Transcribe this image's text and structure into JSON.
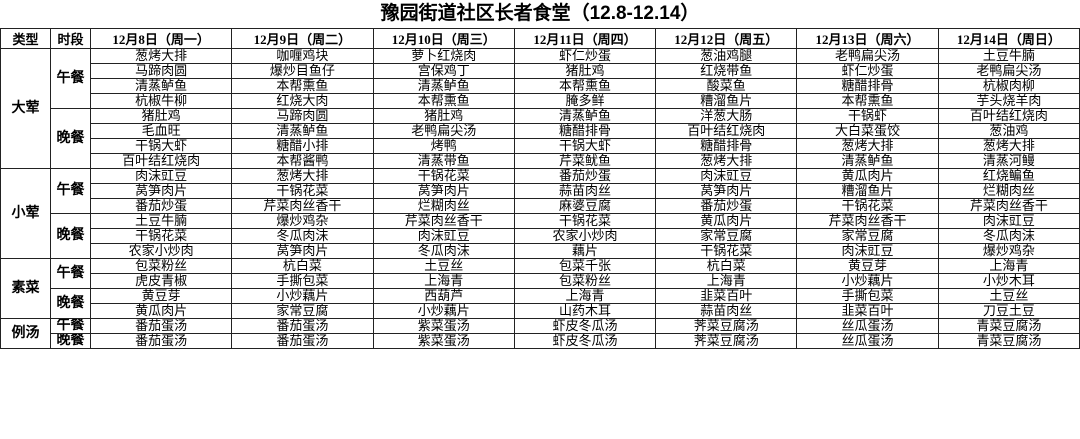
{
  "header": {
    "title": "豫园街道社区长者食堂（12.8-12.14）",
    "columns": [
      "类型",
      "时段",
      "12月8日（周一）",
      "12月9日（周二）",
      "12月10日（周三）",
      "12月11日（周四）",
      "12月12日（周五）",
      "12月13日（周六）",
      "12月14日（周日）"
    ]
  },
  "groups": [
    {
      "type": "大荤",
      "periods": [
        {
          "period": "午餐",
          "rows": [
            [
              "葱烤大排",
              "咖喱鸡块",
              "萝卜红烧肉",
              "虾仁炒蛋",
              "葱油鸡腿",
              "老鸭扁尖汤",
              "土豆牛腩"
            ],
            [
              "马蹄肉圆",
              "爆炒目鱼仔",
              "宫保鸡丁",
              "猪肚鸡",
              "红烧带鱼",
              "虾仁炒蛋",
              "老鸭扁尖汤"
            ],
            [
              "清蒸鲈鱼",
              "本帮熏鱼",
              "清蒸鲈鱼",
              "本帮熏鱼",
              "酸菜鱼",
              "糖醋排骨",
              "杭椒肉柳"
            ],
            [
              "杭椒牛柳",
              "红烧大肉",
              "本帮熏鱼",
              "腌多鲜",
              "糟溜鱼片",
              "本帮熏鱼",
              "芋头烧羊肉"
            ]
          ]
        },
        {
          "period": "晚餐",
          "rows": [
            [
              "猪肚鸡",
              "马蹄肉圆",
              "猪肚鸡",
              "清蒸鲈鱼",
              "洋葱大肠",
              "干锅虾",
              "百叶结红烧肉"
            ],
            [
              "毛血旺",
              "清蒸鲈鱼",
              "老鸭扁尖汤",
              "糖醋排骨",
              "百叶结红烧肉",
              "大白菜蛋饺",
              "葱油鸡"
            ],
            [
              "干锅大虾",
              "糖醋小排",
              "烤鸭",
              "干锅大虾",
              "糖醋排骨",
              "葱烤大排",
              "葱烤大排"
            ],
            [
              "百叶结红烧肉",
              "本帮酱鸭",
              "清蒸带鱼",
              "芹菜鱿鱼",
              "葱烤大排",
              "清蒸鲈鱼",
              "清蒸河鳗"
            ]
          ]
        }
      ]
    },
    {
      "type": "小荤",
      "periods": [
        {
          "period": "午餐",
          "rows": [
            [
              "肉沫豇豆",
              "葱烤大排",
              "干锅花菜",
              "番茄炒蛋",
              "肉沫豇豆",
              "黄瓜肉片",
              "红烧鳊鱼"
            ],
            [
              "莴笋肉片",
              "干锅花菜",
              "莴笋肉片",
              "蒜苗肉丝",
              "莴笋肉片",
              "糟溜鱼片",
              "烂糊肉丝"
            ],
            [
              "番茄炒蛋",
              "芹菜肉丝香干",
              "烂糊肉丝",
              "麻婆豆腐",
              "番茄炒蛋",
              "干锅花菜",
              "芹菜肉丝香干"
            ]
          ]
        },
        {
          "period": "晚餐",
          "rows": [
            [
              "土豆牛腩",
              "爆炒鸡杂",
              "芹菜肉丝香干",
              "干锅花菜",
              "黄瓜肉片",
              "芹菜肉丝香干",
              "肉沫豇豆"
            ],
            [
              "干锅花菜",
              "冬瓜肉沫",
              "肉沫豇豆",
              "农家小炒肉",
              "家常豆腐",
              "家常豆腐",
              "冬瓜肉沫"
            ],
            [
              "农家小炒肉",
              "莴笋肉片",
              "冬瓜肉沫",
              "藕片",
              "干锅花菜",
              "肉沫豇豆",
              "爆炒鸡杂"
            ]
          ]
        }
      ]
    },
    {
      "type": "素菜",
      "periods": [
        {
          "period": "午餐",
          "rows": [
            [
              "包菜粉丝",
              "杭白菜",
              "土豆丝",
              "包菜千张",
              "杭白菜",
              "黄豆芽",
              "上海青"
            ],
            [
              "虎皮青椒",
              "手撕包菜",
              "上海青",
              "包菜粉丝",
              "上海青",
              "小炒藕片",
              "小炒木耳"
            ]
          ]
        },
        {
          "period": "晚餐",
          "rows": [
            [
              "黄豆芽",
              "小炒藕片",
              "西葫芦",
              "上海青",
              "韭菜百叶",
              "手撕包菜",
              "土豆丝"
            ],
            [
              "黄瓜肉片",
              "家常豆腐",
              "小炒藕片",
              "山药木耳",
              "蒜苗肉丝",
              "韭菜百叶",
              "刀豆土豆"
            ]
          ]
        }
      ]
    },
    {
      "type": "例汤",
      "periods": [
        {
          "period": "午餐",
          "rows": [
            [
              "番茄蛋汤",
              "番茄蛋汤",
              "紫菜蛋汤",
              "虾皮冬瓜汤",
              "荠菜豆腐汤",
              "丝瓜蛋汤",
              "青菜豆腐汤"
            ]
          ]
        },
        {
          "period": "晚餐",
          "rows": [
            [
              "番茄蛋汤",
              "番茄蛋汤",
              "紫菜蛋汤",
              "虾皮冬瓜汤",
              "荠菜豆腐汤",
              "丝瓜蛋汤",
              "青菜豆腐汤"
            ]
          ]
        }
      ]
    }
  ]
}
